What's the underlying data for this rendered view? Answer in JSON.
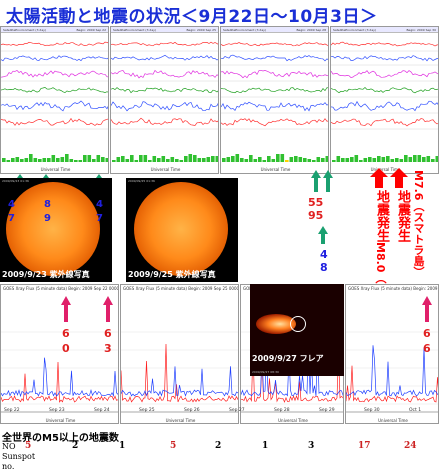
{
  "title": "太陽活動と地震の状況＜9月22日～10月3日＞",
  "colors": {
    "title_blue": "#1a2fd6",
    "annotation_red": "#ff0000",
    "annotation_blue": "#2020e0",
    "arrow_green": "#1aa070",
    "arrow_pink": "#e0206a",
    "magnitude_red": "#cc2222"
  },
  "top_panels": [
    {
      "header_left": "SatelliteEnvironment (3 day)",
      "header_right": "Begin: 2009 Sep 22"
    },
    {
      "header_left": "SatelliteEnvironment (3 day)",
      "header_right": "Begin: 2009 Sep 25"
    },
    {
      "header_left": "SatelliteEnvironment (3 day)",
      "header_right": "Begin: 2009 Sep 28"
    },
    {
      "header_left": "SatelliteEnvironment (3 day)",
      "header_right": "Begin: 2009 Sep 30"
    }
  ],
  "axis_universal_time": "Universal Time",
  "source_label": "NOAA/SWPC Boulder",
  "sun_images": [
    {
      "caption": "2009/9/23 紫外線写真",
      "meta": "2009/09/23 01:36",
      "numbers_left": "4\n7",
      "numbers_right": "8\n9",
      "numbers_edge": "4\n7"
    },
    {
      "caption": "2009/9/25 紫外線写真",
      "meta": "2009/09/25 01:36"
    }
  ],
  "flare_image": {
    "caption": "2009/9/27 フレア",
    "meta": "2009/09/27 08:30"
  },
  "xray_panels": [
    {
      "header": "GOES Xray Flux (5 minute data)",
      "begin": "Begin: 2009 Sep 22 0000 UTC"
    },
    {
      "header": "GOES Xray Flux (5 minute data)",
      "begin": "Begin: 2009 Sep 25 0000 UTC"
    },
    {
      "header": "GOES Xray Flux (5 minute data)",
      "begin": "Begin: 2009 Sep 28 0000 UTC"
    },
    {
      "header": "GOES Xray Flux (5 minute data)",
      "begin": "Begin: 2009 Sep 30 0000 UTC"
    }
  ],
  "xray_dates": [
    "Sep 22",
    "Sep 23",
    "Sep 24",
    "Sep 25",
    "Sep 26",
    "Sep 27",
    "Sep 28",
    "Sep 29",
    "Sep 30",
    "Oct 1"
  ],
  "annotations": {
    "green_stack": "55\n95",
    "green_stack2": "4\n8",
    "quake1_line1": "地震発生",
    "quake1_line2": "M8.0（サモア諸島）",
    "quake2_line1": "地震発生",
    "quake2_line2": "M7.6（スマトラ島）",
    "pink1": "6\n0",
    "pink2": "6\n3",
    "pink3": "6\n6"
  },
  "quake_count_title": "全世界のM5以上の地震数",
  "row_labels": {
    "no": "NO",
    "sunspot": "Sunspot",
    "no2": "no."
  },
  "quake_counts": [
    "5",
    "2",
    "1",
    "5",
    "2",
    "1",
    "3",
    "17",
    "24"
  ],
  "quake_count_colors": [
    "#cc2222",
    "#000000",
    "#000000",
    "#cc2222",
    "#000000",
    "#000000",
    "#000000",
    "#cc2222",
    "#cc2222"
  ]
}
